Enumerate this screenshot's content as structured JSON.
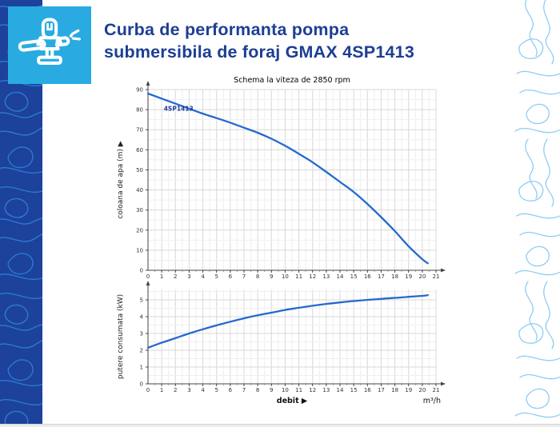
{
  "header": {
    "title": "Curba de performanta pompa submersibila de foraj GMAX 4SP1413",
    "icon": "sprinkler-icon"
  },
  "colors": {
    "title_blue": "#1d3e94",
    "curve_blue": "#2569cd",
    "icon_tile_bg": "#29abe2",
    "sidebar_blue": "#1c429b",
    "sidebar_contour": "#2e79d2",
    "right_contour": "#8ecdf2",
    "grid_major": "#d8d8d8",
    "grid_minor": "#efefef",
    "axis": "#444444"
  },
  "chart_data": [
    {
      "type": "line",
      "title": "Schema la viteza de 2850 rpm",
      "xlabel": "",
      "ylabel": "coloana de apa (m)",
      "ylabel_arrow": true,
      "xlim": [
        0,
        21
      ],
      "ylim": [
        0,
        90
      ],
      "xticks": [
        0,
        1,
        2,
        3,
        4,
        5,
        6,
        7,
        8,
        9,
        10,
        11,
        12,
        13,
        14,
        15,
        16,
        17,
        18,
        19,
        20,
        21
      ],
      "yticks": [
        0,
        10,
        20,
        30,
        40,
        50,
        60,
        70,
        80,
        90
      ],
      "grid": true,
      "legend_position": "none",
      "series": [
        {
          "name": "4SP1413",
          "label_at": [
            1.15,
            79.5
          ],
          "x": [
            0,
            1,
            2,
            3,
            4,
            5,
            6,
            7,
            8,
            9,
            10,
            11,
            12,
            13,
            14,
            15,
            16,
            17,
            18,
            19,
            20,
            20.4
          ],
          "y": [
            88,
            85.5,
            83,
            80.5,
            78,
            75.8,
            73.5,
            71,
            68.5,
            65.5,
            62,
            58,
            53.8,
            49,
            44,
            39,
            33,
            26.5,
            19.5,
            12,
            5.5,
            3.5
          ]
        }
      ]
    },
    {
      "type": "line",
      "title": "",
      "xlabel": "debit",
      "xlabel_arrow": true,
      "xunit": "m³/h",
      "ylabel": "putere consumata (kW)",
      "ylabel_arrow": false,
      "xlim": [
        0,
        21
      ],
      "ylim": [
        0,
        5
      ],
      "xticks": [
        0,
        1,
        2,
        3,
        4,
        5,
        6,
        7,
        8,
        9,
        10,
        11,
        12,
        13,
        14,
        15,
        16,
        17,
        18,
        19,
        20,
        21
      ],
      "yticks": [
        0,
        1,
        2,
        3,
        4,
        5
      ],
      "grid": true,
      "legend_position": "none",
      "series": [
        {
          "name": "",
          "x": [
            0,
            1,
            2,
            3,
            4,
            5,
            6,
            7,
            8,
            9,
            10,
            11,
            12,
            13,
            14,
            15,
            16,
            17,
            18,
            19,
            20,
            20.4
          ],
          "y": [
            2.15,
            2.45,
            2.72,
            3.0,
            3.25,
            3.48,
            3.7,
            3.9,
            4.08,
            4.24,
            4.4,
            4.53,
            4.65,
            4.76,
            4.85,
            4.93,
            5.0,
            5.06,
            5.12,
            5.18,
            5.24,
            5.28
          ]
        }
      ]
    }
  ]
}
